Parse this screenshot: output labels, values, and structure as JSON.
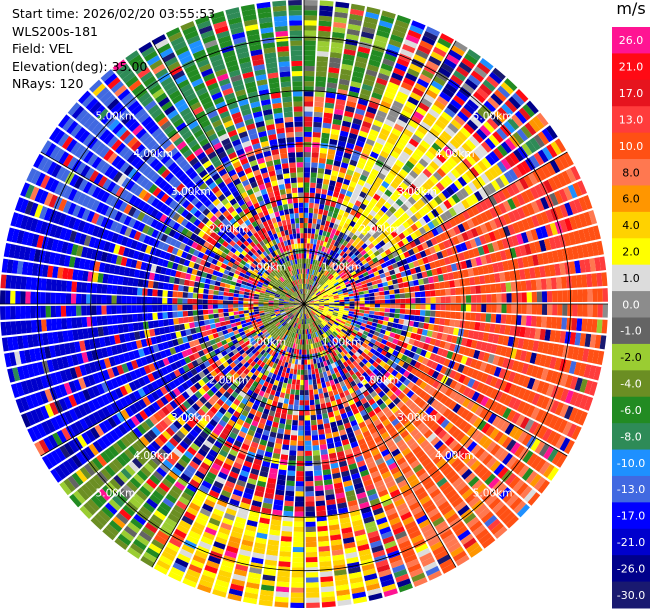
{
  "header": {
    "start_time_label": "Start time:",
    "start_time": "2026/02/20 03:55:53",
    "instrument": "WLS200s-181",
    "field_label": "Field:",
    "field": "VEL",
    "elevation_label": "Elevation(deg):",
    "elevation": "35.00",
    "nrays_label": "NRays:",
    "nrays": "120"
  },
  "colorbar": {
    "unit": "m/s",
    "levels": [
      {
        "label": "26.0",
        "color": "#ff1493"
      },
      {
        "label": "21.0",
        "color": "#ff0a14"
      },
      {
        "label": "17.0",
        "color": "#e6141e"
      },
      {
        "label": "13.0",
        "color": "#ff3c3c"
      },
      {
        "label": "10.0",
        "color": "#ff5014"
      },
      {
        "label": "8.0",
        "color": "#ff7850"
      },
      {
        "label": "6.0",
        "color": "#ff9600"
      },
      {
        "label": "4.0",
        "color": "#ffd200"
      },
      {
        "label": "2.0",
        "color": "#ffff00"
      },
      {
        "label": "1.0",
        "color": "#dcdcdc"
      },
      {
        "label": "0.0",
        "color": "#8c8c8c"
      },
      {
        "label": "-1.0",
        "color": "#646464"
      },
      {
        "label": "-2.0",
        "color": "#9acd32"
      },
      {
        "label": "-4.0",
        "color": "#6b8e23"
      },
      {
        "label": "-6.0",
        "color": "#228b22"
      },
      {
        "label": "-8.0",
        "color": "#2e8b57"
      },
      {
        "label": "-10.0",
        "color": "#1e90ff"
      },
      {
        "label": "-13.0",
        "color": "#4169e1"
      },
      {
        "label": "-17.0",
        "color": "#0000ff"
      },
      {
        "label": "-21.0",
        "color": "#0000cd"
      },
      {
        "label": "-26.0",
        "color": "#00008b"
      },
      {
        "label": "-30.0",
        "color": "#191970"
      }
    ]
  },
  "chart_data": {
    "type": "heatmap",
    "projection": "polar-ppi",
    "field": "VEL",
    "units": "m/s",
    "n_rays": 120,
    "range_rings_km": [
      1.0,
      2.0,
      3.0,
      4.0,
      5.0
    ],
    "range_ring_labels": [
      "1.00km",
      "2.00km",
      "3.00km",
      "4.00km",
      "5.00km"
    ],
    "max_range_km": 5.7,
    "value_range": [
      -30.0,
      26.0
    ],
    "sectors": [
      {
        "azimuth_deg": [
          20,
          60
        ],
        "range_km": [
          1.5,
          4.5
        ],
        "velocity_ms": 3.0
      },
      {
        "azimuth_deg": [
          60,
          120
        ],
        "range_km": [
          2.5,
          5.7
        ],
        "velocity_ms": 12.0
      },
      {
        "azimuth_deg": [
          120,
          160
        ],
        "range_km": [
          2.5,
          5.7
        ],
        "velocity_ms": 10.0
      },
      {
        "azimuth_deg": [
          165,
          210
        ],
        "range_km": [
          4.0,
          5.7
        ],
        "velocity_ms": 4.0
      },
      {
        "azimuth_deg": [
          210,
          235
        ],
        "range_km": [
          4.0,
          5.7
        ],
        "velocity_ms": -3.0
      },
      {
        "azimuth_deg": [
          235,
          290
        ],
        "range_km": [
          2.5,
          5.7
        ],
        "velocity_ms": -17.0
      },
      {
        "azimuth_deg": [
          290,
          320
        ],
        "range_km": [
          2.5,
          5.7
        ],
        "velocity_ms": -13.0
      },
      {
        "azimuth_deg": [
          320,
          360
        ],
        "range_km": [
          3.5,
          5.7
        ],
        "velocity_ms": -6.0
      },
      {
        "azimuth_deg": [
          0,
          20
        ],
        "range_km": [
          4.0,
          5.7
        ],
        "velocity_ms": -3.0
      }
    ]
  }
}
